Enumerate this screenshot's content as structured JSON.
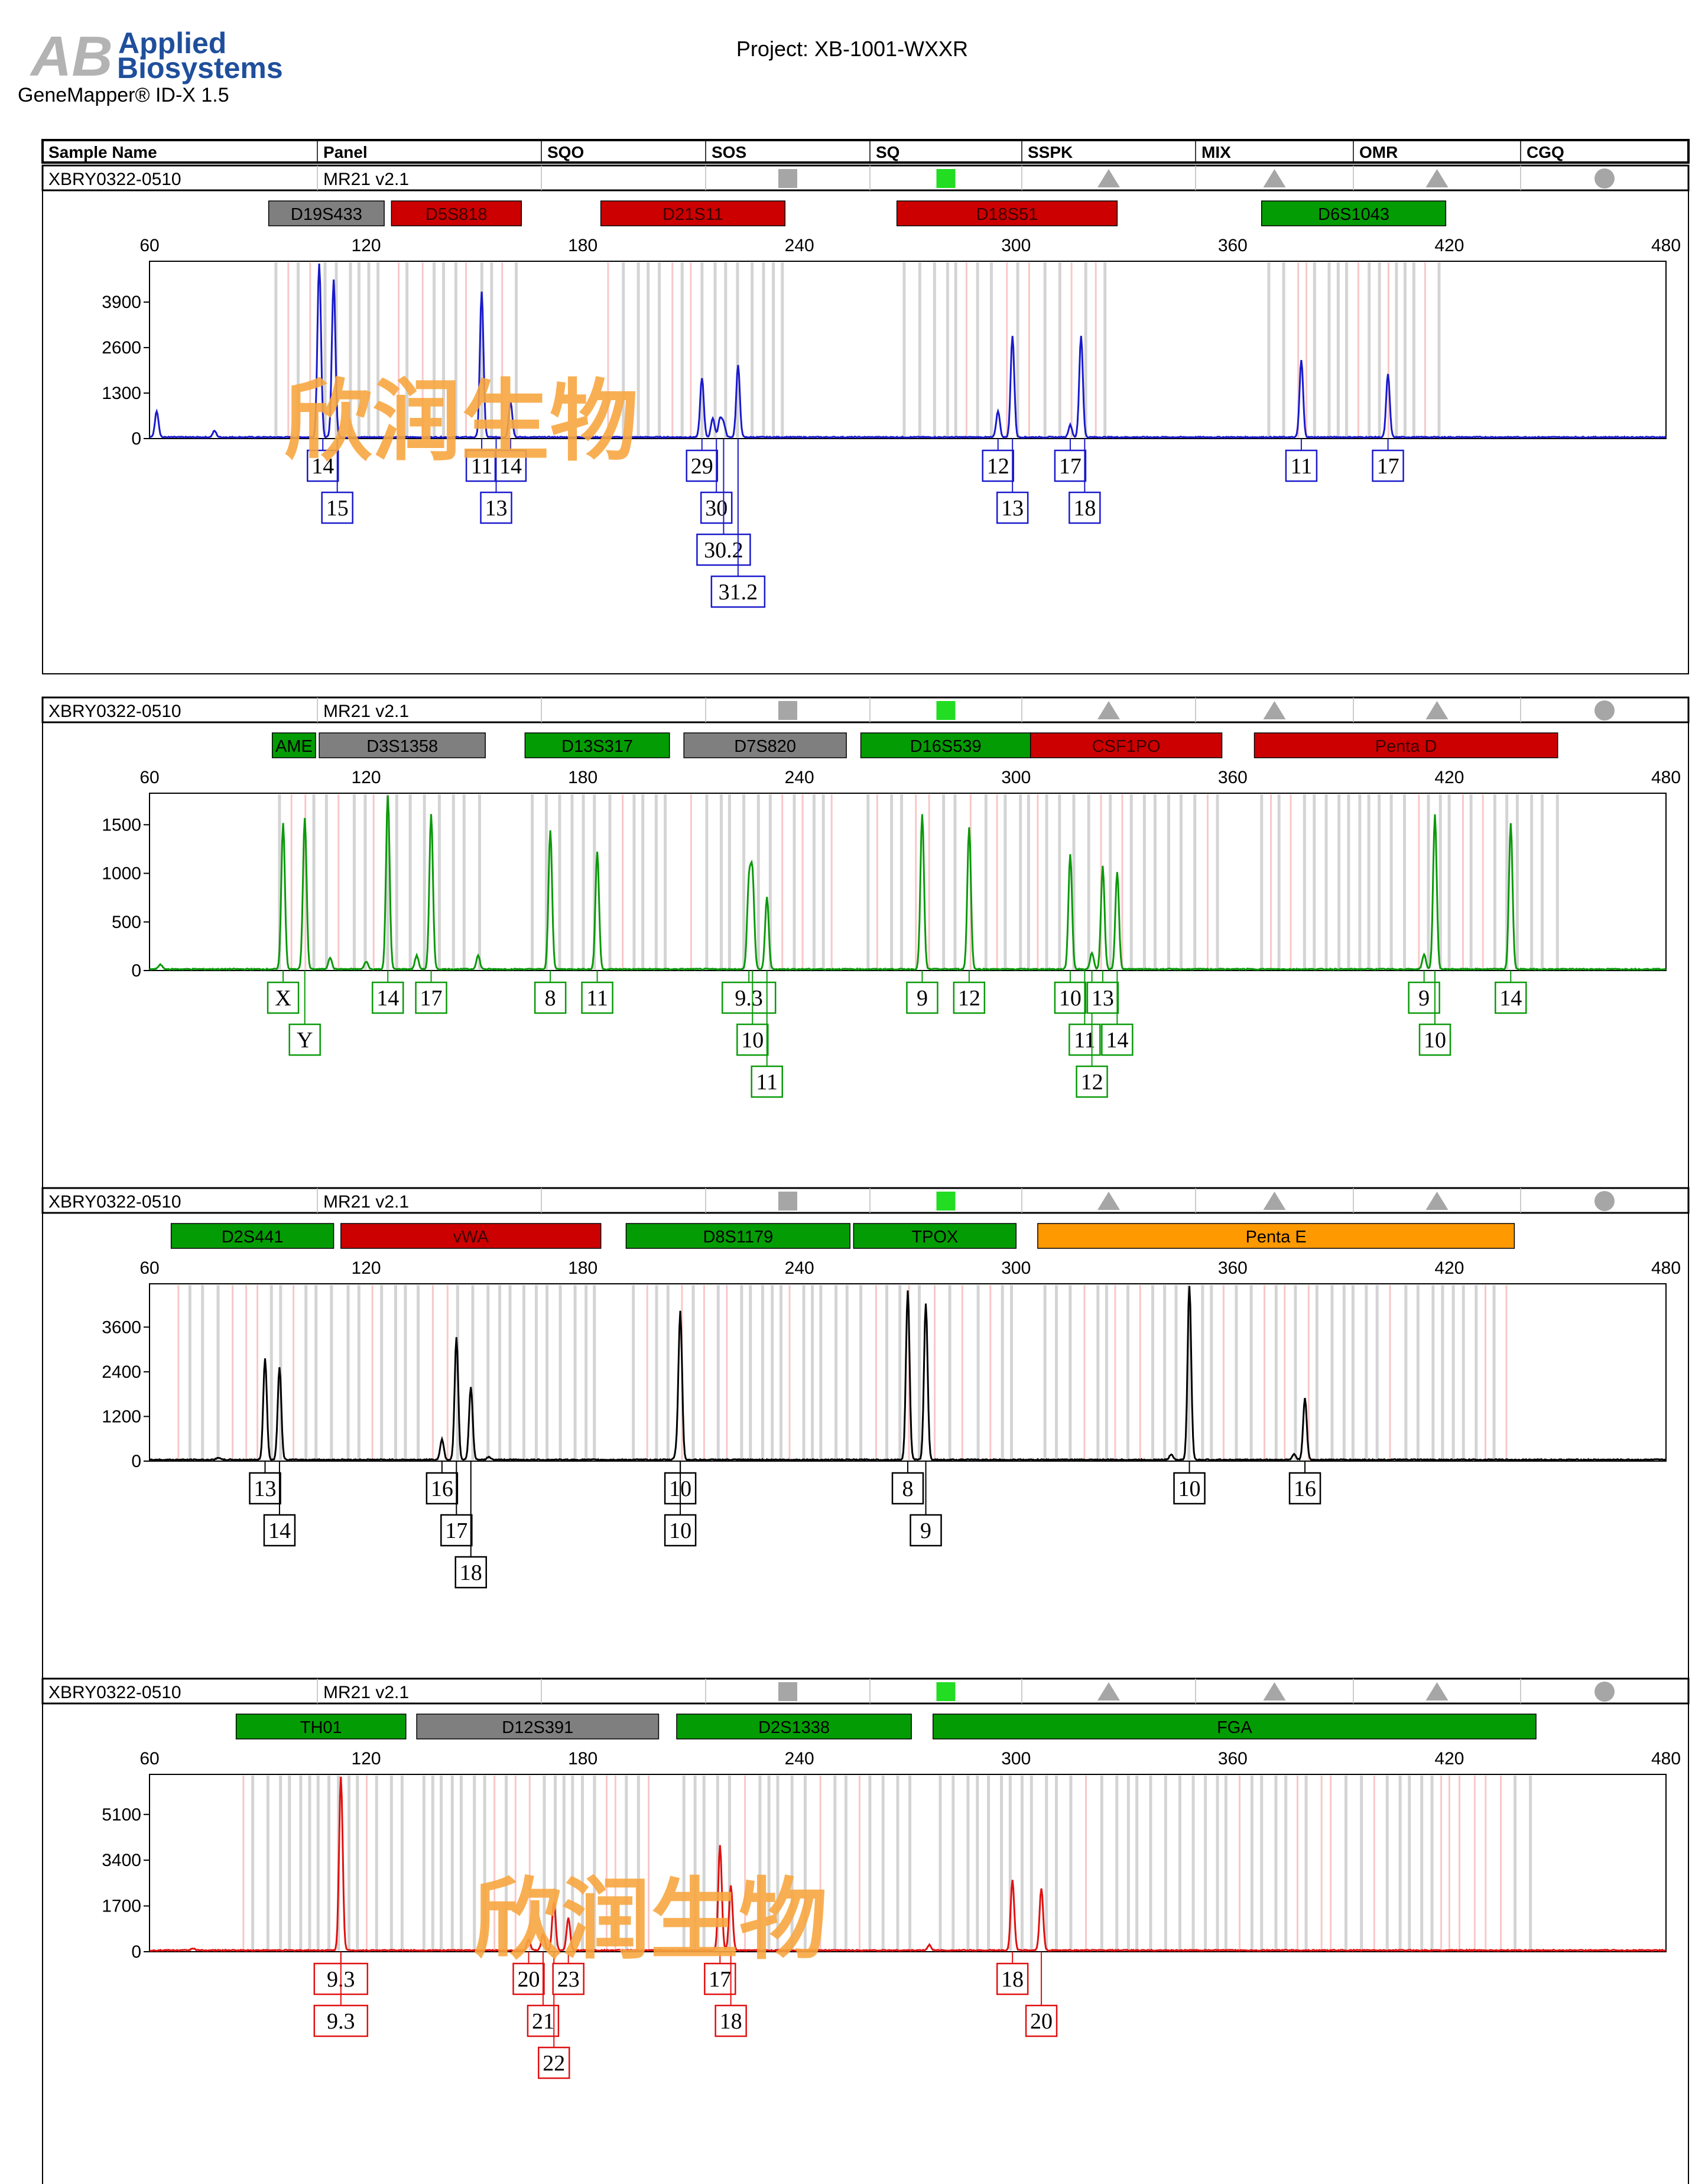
{
  "header": {
    "logo_mark": "AB",
    "logo_line1": "Applied",
    "logo_line2": "Biosystems",
    "software": "GeneMapper® ID-X  1.5",
    "project": "Project: XB-1001-WXXR"
  },
  "table_header": [
    "Sample Name",
    "Panel",
    "SQO",
    "SOS",
    "SQ",
    "SSPK",
    "MIX",
    "OMR",
    "CGQ"
  ],
  "watermark": "欣润生物",
  "colors": {
    "blue": "#1a1acc",
    "green": "#0a9a0a",
    "black": "#000000",
    "red": "#e01010",
    "marker_gray": "#7f7f7f",
    "marker_red": "#cc0000",
    "marker_green": "#049c04",
    "marker_orange": "#ff9900",
    "watermark": "#f7a640",
    "sq_pass": "#22dd22",
    "flag_gray": "#a6a6a6"
  },
  "panels": [
    {
      "sample": "XBRY0322-0510",
      "panel": "MR21  v2.1",
      "flags": {
        "SQO": "",
        "SOS": "square-gray-icon",
        "SQ": "square-green-icon",
        "SSPK": "triangle-gray-icon",
        "MIX": "triangle-gray-icon",
        "OMR": "triangle-gray-icon",
        "CGQ": "circle-gray-icon"
      },
      "dye": "blue",
      "markers": [
        {
          "name": "D19S433",
          "start": 93,
          "end": 125,
          "color": "gray"
        },
        {
          "name": "D5S818",
          "start": 127,
          "end": 163,
          "color": "red"
        },
        {
          "name": "D21S11",
          "start": 185,
          "end": 236,
          "color": "red"
        },
        {
          "name": "D18S51",
          "start": 267,
          "end": 328,
          "color": "red"
        },
        {
          "name": "D6S1043",
          "start": 368,
          "end": 419,
          "color": "green"
        }
      ],
      "x_ticks": [
        60,
        120,
        180,
        240,
        300,
        360,
        420,
        480
      ],
      "y_ticks": [
        0,
        1300,
        2600,
        3900
      ],
      "ylim": [
        0,
        5000
      ],
      "peaks": [
        {
          "x": 62,
          "y": 750
        },
        {
          "x": 78,
          "y": 180
        },
        {
          "x": 107,
          "y": 5000
        },
        {
          "x": 111,
          "y": 4500
        },
        {
          "x": 152,
          "y": 4150
        },
        {
          "x": 160,
          "y": 1000
        },
        {
          "x": 213,
          "y": 1700
        },
        {
          "x": 216,
          "y": 550
        },
        {
          "x": 218,
          "y": 520
        },
        {
          "x": 219,
          "y": 380
        },
        {
          "x": 223,
          "y": 2050
        },
        {
          "x": 295,
          "y": 750
        },
        {
          "x": 299,
          "y": 2900
        },
        {
          "x": 315,
          "y": 350
        },
        {
          "x": 318,
          "y": 2900
        },
        {
          "x": 379,
          "y": 2200
        },
        {
          "x": 403,
          "y": 1800
        }
      ],
      "alleles": [
        {
          "label": "14",
          "x": 108,
          "row": 0
        },
        {
          "label": "15",
          "x": 112,
          "row": 1
        },
        {
          "label": "11",
          "x": 152,
          "row": 0
        },
        {
          "label": "14",
          "x": 160,
          "row": 0
        },
        {
          "label": "13",
          "x": 156,
          "row": 1
        },
        {
          "label": "29",
          "x": 213,
          "row": 0
        },
        {
          "label": "30",
          "x": 217,
          "row": 1
        },
        {
          "label": "30.2",
          "x": 219,
          "row": 2
        },
        {
          "label": "31.2",
          "x": 223,
          "row": 3
        },
        {
          "label": "12",
          "x": 295,
          "row": 0
        },
        {
          "label": "13",
          "x": 299,
          "row": 1
        },
        {
          "label": "17",
          "x": 315,
          "row": 0
        },
        {
          "label": "18",
          "x": 319,
          "row": 1
        },
        {
          "label": "11",
          "x": 379,
          "row": 0
        },
        {
          "label": "17",
          "x": 403,
          "row": 0
        }
      ]
    },
    {
      "sample": "XBRY0322-0510",
      "panel": "MR21  v2.1",
      "flags": {
        "SQO": "",
        "SOS": "square-gray-icon",
        "SQ": "square-green-icon",
        "SSPK": "triangle-gray-icon",
        "MIX": "triangle-gray-icon",
        "OMR": "triangle-gray-icon",
        "CGQ": "circle-gray-icon"
      },
      "dye": "green",
      "markers": [
        {
          "name": "AME",
          "start": 94,
          "end": 106,
          "color": "green"
        },
        {
          "name": "D3S1358",
          "start": 107,
          "end": 153,
          "color": "gray"
        },
        {
          "name": "D13S317",
          "start": 164,
          "end": 204,
          "color": "green"
        },
        {
          "name": "D7S820",
          "start": 208,
          "end": 253,
          "color": "gray"
        },
        {
          "name": "D16S539",
          "start": 257,
          "end": 304,
          "color": "green"
        },
        {
          "name": "CSF1PO",
          "start": 304,
          "end": 357,
          "color": "red"
        },
        {
          "name": "Penta D",
          "start": 366,
          "end": 450,
          "color": "red"
        }
      ],
      "x_ticks": [
        60,
        120,
        180,
        240,
        300,
        360,
        420,
        480
      ],
      "y_ticks": [
        0,
        500,
        1000,
        1500
      ],
      "ylim": [
        0,
        1800
      ],
      "peaks": [
        {
          "x": 63,
          "y": 50
        },
        {
          "x": 97,
          "y": 1500
        },
        {
          "x": 103,
          "y": 1560
        },
        {
          "x": 110,
          "y": 120
        },
        {
          "x": 120,
          "y": 80
        },
        {
          "x": 126,
          "y": 1800
        },
        {
          "x": 134,
          "y": 140
        },
        {
          "x": 138,
          "y": 1590
        },
        {
          "x": 151,
          "y": 140
        },
        {
          "x": 171,
          "y": 1430
        },
        {
          "x": 184,
          "y": 1210
        },
        {
          "x": 226,
          "y": 860
        },
        {
          "x": 227,
          "y": 940
        },
        {
          "x": 231,
          "y": 740
        },
        {
          "x": 274,
          "y": 1590
        },
        {
          "x": 287,
          "y": 1460
        },
        {
          "x": 315,
          "y": 1180
        },
        {
          "x": 321,
          "y": 170
        },
        {
          "x": 324,
          "y": 1060
        },
        {
          "x": 328,
          "y": 1000
        },
        {
          "x": 413,
          "y": 150
        },
        {
          "x": 416,
          "y": 1590
        },
        {
          "x": 437,
          "y": 1500
        }
      ],
      "alleles": [
        {
          "label": "X",
          "x": 97,
          "row": 0
        },
        {
          "label": "Y",
          "x": 103,
          "row": 1
        },
        {
          "label": "14",
          "x": 126,
          "row": 0
        },
        {
          "label": "17",
          "x": 138,
          "row": 0
        },
        {
          "label": "8",
          "x": 171,
          "row": 0
        },
        {
          "label": "11",
          "x": 184,
          "row": 0
        },
        {
          "label": "9.3",
          "x": 226,
          "row": 0
        },
        {
          "label": "10",
          "x": 227,
          "row": 1
        },
        {
          "label": "11",
          "x": 231,
          "row": 2
        },
        {
          "label": "9",
          "x": 274,
          "row": 0
        },
        {
          "label": "12",
          "x": 287,
          "row": 0
        },
        {
          "label": "10",
          "x": 315,
          "row": 0
        },
        {
          "label": "11",
          "x": 319,
          "row": 1
        },
        {
          "label": "12",
          "x": 321,
          "row": 2
        },
        {
          "label": "13",
          "x": 324,
          "row": 0
        },
        {
          "label": "14",
          "x": 328,
          "row": 1
        },
        {
          "label": "9",
          "x": 413,
          "row": 0
        },
        {
          "label": "10",
          "x": 416,
          "row": 1
        },
        {
          "label": "14",
          "x": 437,
          "row": 0
        }
      ]
    },
    {
      "sample": "XBRY0322-0510",
      "panel": "MR21  v2.1",
      "flags": {
        "SQO": "",
        "SOS": "square-gray-icon",
        "SQ": "square-green-icon",
        "SSPK": "triangle-gray-icon",
        "MIX": "triangle-gray-icon",
        "OMR": "triangle-gray-icon",
        "CGQ": "circle-gray-icon"
      },
      "dye": "black",
      "markers": [
        {
          "name": "D2S441",
          "start": 66,
          "end": 111,
          "color": "green"
        },
        {
          "name": "vWA",
          "start": 113,
          "end": 185,
          "color": "red"
        },
        {
          "name": "D8S1179",
          "start": 192,
          "end": 254,
          "color": "green"
        },
        {
          "name": "TPOX",
          "start": 255,
          "end": 300,
          "color": "green"
        },
        {
          "name": "Penta E",
          "start": 306,
          "end": 438,
          "color": "orange"
        }
      ],
      "x_ticks": [
        60,
        120,
        180,
        240,
        300,
        360,
        420,
        480
      ],
      "y_ticks": [
        0,
        1200,
        2400,
        3600
      ],
      "ylim": [
        0,
        4700
      ],
      "peaks": [
        {
          "x": 79,
          "y": 60
        },
        {
          "x": 92,
          "y": 2720
        },
        {
          "x": 96,
          "y": 2480
        },
        {
          "x": 141,
          "y": 550
        },
        {
          "x": 145,
          "y": 3300
        },
        {
          "x": 149,
          "y": 1950
        },
        {
          "x": 154,
          "y": 80
        },
        {
          "x": 206,
          "y": 200
        },
        {
          "x": 207,
          "y": 3970
        },
        {
          "x": 270,
          "y": 4550
        },
        {
          "x": 275,
          "y": 4200
        },
        {
          "x": 343,
          "y": 150
        },
        {
          "x": 348,
          "y": 4700
        },
        {
          "x": 377,
          "y": 150
        },
        {
          "x": 380,
          "y": 1650
        }
      ],
      "alleles": [
        {
          "label": "13",
          "x": 92,
          "row": 0
        },
        {
          "label": "14",
          "x": 96,
          "row": 1
        },
        {
          "label": "16",
          "x": 141,
          "row": 0
        },
        {
          "label": "17",
          "x": 145,
          "row": 1
        },
        {
          "label": "18",
          "x": 149,
          "row": 2
        },
        {
          "label": "10",
          "x": 207,
          "row": 0
        },
        {
          "label": "10",
          "x": 207,
          "row": 1
        },
        {
          "label": "8",
          "x": 270,
          "row": 0
        },
        {
          "label": "9",
          "x": 275,
          "row": 1
        },
        {
          "label": "10",
          "x": 348,
          "row": 0
        },
        {
          "label": "16",
          "x": 380,
          "row": 0
        }
      ]
    },
    {
      "sample": "XBRY0322-0510",
      "panel": "MR21  v2.1",
      "flags": {
        "SQO": "",
        "SOS": "square-gray-icon",
        "SQ": "square-green-icon",
        "SSPK": "triangle-gray-icon",
        "MIX": "triangle-gray-icon",
        "OMR": "triangle-gray-icon",
        "CGQ": "circle-gray-icon"
      },
      "dye": "red",
      "markers": [
        {
          "name": "TH01",
          "start": 84,
          "end": 131,
          "color": "green"
        },
        {
          "name": "D12S391",
          "start": 134,
          "end": 201,
          "color": "gray"
        },
        {
          "name": "D2S1338",
          "start": 206,
          "end": 271,
          "color": "green"
        },
        {
          "name": "FGA",
          "start": 277,
          "end": 444,
          "color": "green"
        }
      ],
      "x_ticks": [
        60,
        120,
        180,
        240,
        300,
        360,
        420,
        480
      ],
      "y_ticks": [
        0,
        1700,
        3400,
        5100
      ],
      "ylim": [
        0,
        6500
      ],
      "peaks": [
        {
          "x": 72,
          "y": 80
        },
        {
          "x": 113,
          "y": 6500
        },
        {
          "x": 165,
          "y": 400
        },
        {
          "x": 169,
          "y": 600
        },
        {
          "x": 172,
          "y": 1800
        },
        {
          "x": 176,
          "y": 1200
        },
        {
          "x": 218,
          "y": 3900
        },
        {
          "x": 221,
          "y": 2400
        },
        {
          "x": 276,
          "y": 200
        },
        {
          "x": 299,
          "y": 2600
        },
        {
          "x": 307,
          "y": 2300
        }
      ],
      "alleles": [
        {
          "label": "9.3",
          "x": 113,
          "row": 0
        },
        {
          "label": "9.3",
          "x": 113,
          "row": 1
        },
        {
          "label": "20",
          "x": 165,
          "row": 0
        },
        {
          "label": "21",
          "x": 169,
          "row": 1
        },
        {
          "label": "22",
          "x": 172,
          "row": 2
        },
        {
          "label": "23",
          "x": 176,
          "row": 0
        },
        {
          "label": "17",
          "x": 218,
          "row": 0
        },
        {
          "label": "18",
          "x": 221,
          "row": 1
        },
        {
          "label": "18",
          "x": 299,
          "row": 0
        },
        {
          "label": "20",
          "x": 307,
          "row": 1
        }
      ]
    }
  ],
  "chart_data": [
    {
      "type": "line",
      "title": "",
      "xlabel": "",
      "ylabel": "",
      "xlim": [
        60,
        480
      ],
      "ylim": [
        0,
        5000
      ],
      "grid": false,
      "series": [
        {
          "name": "blue",
          "peaks_x": [
            62,
            78,
            107,
            111,
            152,
            160,
            213,
            216,
            218,
            219,
            223,
            295,
            299,
            315,
            318,
            379,
            403
          ],
          "peaks_y": [
            750,
            180,
            5000,
            4500,
            4150,
            1000,
            1700,
            550,
            520,
            380,
            2050,
            750,
            2900,
            350,
            2900,
            2200,
            1800
          ]
        }
      ]
    },
    {
      "type": "line",
      "title": "",
      "xlabel": "",
      "ylabel": "",
      "xlim": [
        60,
        480
      ],
      "ylim": [
        0,
        1800
      ],
      "grid": false,
      "series": [
        {
          "name": "green",
          "peaks_x": [
            97,
            103,
            126,
            138,
            171,
            184,
            226,
            227,
            231,
            274,
            287,
            315,
            324,
            328,
            416,
            437
          ],
          "peaks_y": [
            1500,
            1560,
            1800,
            1590,
            1430,
            1210,
            860,
            940,
            740,
            1590,
            1460,
            1180,
            1060,
            1000,
            1590,
            1500
          ]
        }
      ]
    },
    {
      "type": "line",
      "title": "",
      "xlabel": "",
      "ylabel": "",
      "xlim": [
        60,
        480
      ],
      "ylim": [
        0,
        4700
      ],
      "grid": false,
      "series": [
        {
          "name": "black",
          "peaks_x": [
            92,
            96,
            141,
            145,
            149,
            207,
            270,
            275,
            348,
            380
          ],
          "peaks_y": [
            2720,
            2480,
            550,
            3300,
            1950,
            3970,
            4550,
            4200,
            4700,
            1650
          ]
        }
      ]
    },
    {
      "type": "line",
      "title": "",
      "xlabel": "",
      "ylabel": "",
      "xlim": [
        60,
        480
      ],
      "ylim": [
        0,
        6500
      ],
      "grid": false,
      "series": [
        {
          "name": "red",
          "peaks_x": [
            113,
            165,
            169,
            172,
            176,
            218,
            221,
            299,
            307
          ],
          "peaks_y": [
            6500,
            400,
            600,
            1800,
            1200,
            3900,
            2400,
            2600,
            2300
          ]
        }
      ]
    }
  ]
}
